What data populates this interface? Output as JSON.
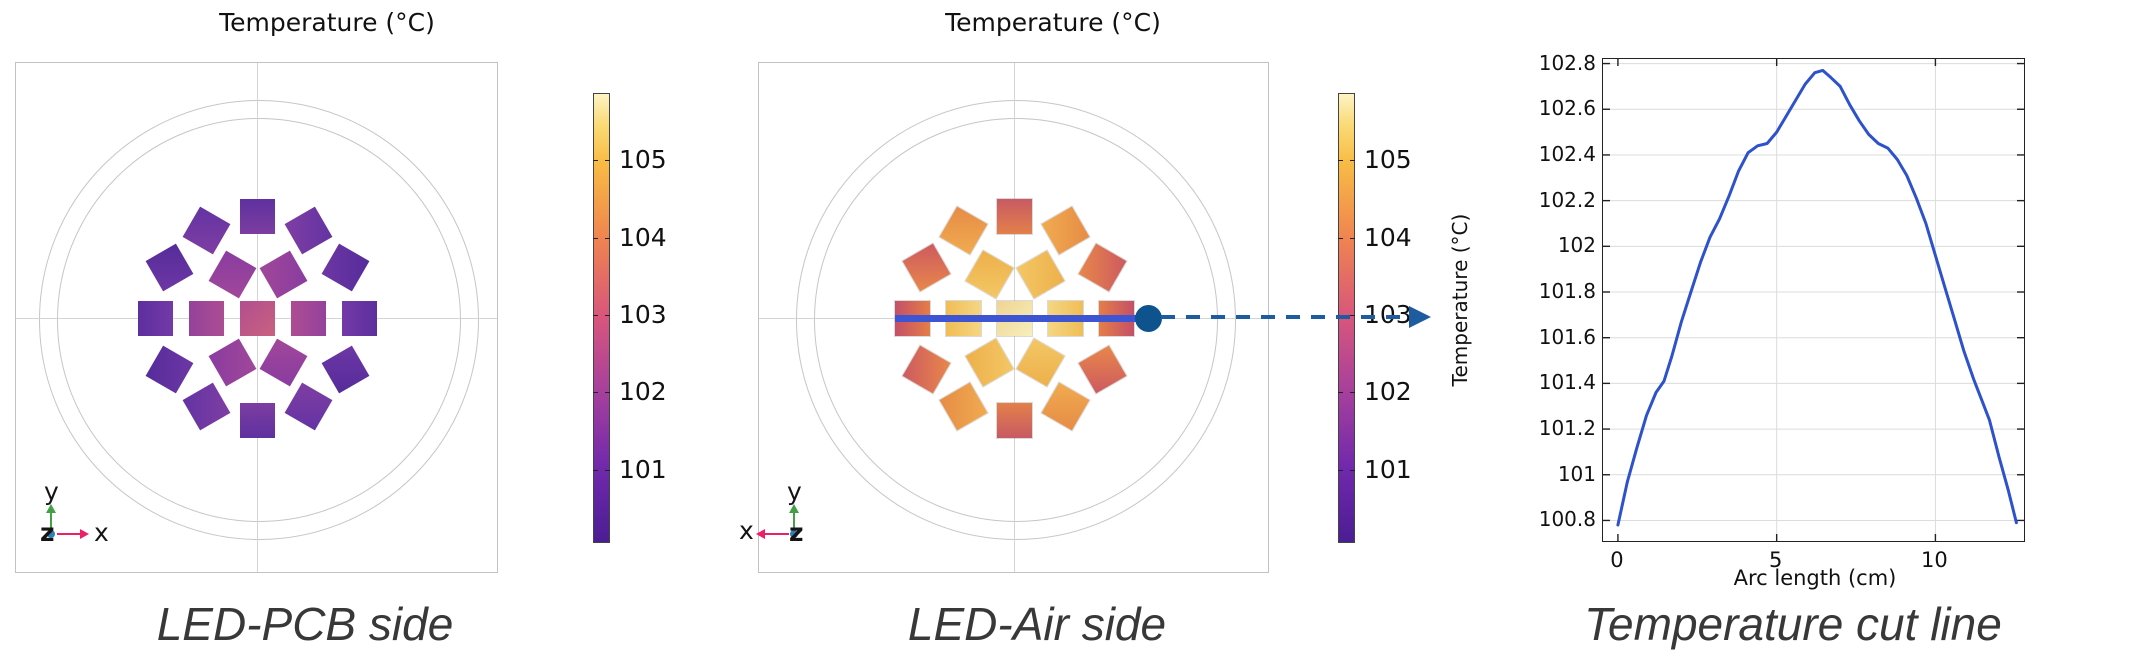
{
  "overlay": {
    "cut_line_color": "#3d55d2",
    "probe_dot_color": "#0f538e",
    "dashed_arrow_color": "#1d5c9f"
  },
  "axis_triads": {
    "pcb": {
      "up": "y",
      "origin": "z",
      "horizontal": "x",
      "horizontal_dir": "right"
    },
    "air": {
      "up": "y",
      "origin": "z",
      "horizontal": "x",
      "horizontal_dir": "left"
    }
  },
  "colorbar": {
    "tick_values": [
      105,
      104,
      103,
      102,
      101
    ],
    "range": {
      "min": 100.05,
      "max": 105.87
    },
    "gradient": [
      [
        0,
        "#4b1d94"
      ],
      [
        0.17,
        "#7229ac"
      ],
      [
        0.34,
        "#a8409c"
      ],
      [
        0.505,
        "#d9567c"
      ],
      [
        0.675,
        "#ef8350"
      ],
      [
        0.845,
        "#f8bb44"
      ],
      [
        0.93,
        "#fbda75"
      ],
      [
        1,
        "#fdf3c3"
      ]
    ]
  },
  "led_array": {
    "square_size": 35,
    "rings": [
      {
        "group": "center",
        "r": 0,
        "angles": [
          0
        ]
      },
      {
        "group": "inner_row",
        "r": 51,
        "angles": [
          0,
          180
        ]
      },
      {
        "group": "inner_diag",
        "r": 51,
        "angles": [
          60,
          120,
          240,
          300
        ]
      },
      {
        "group": "outer_row",
        "r": 102,
        "angles": [
          0,
          180
        ]
      },
      {
        "group": "outer_vert",
        "r": 102,
        "angles": [
          90,
          270
        ]
      },
      {
        "group": "outer_diag_a",
        "r": 102,
        "angles": [
          30,
          150,
          210,
          330
        ]
      },
      {
        "group": "outer_diag_b",
        "r": 102,
        "angles": [
          60,
          120,
          240,
          300
        ]
      }
    ],
    "colors": {
      "pcb": {
        "center": [
          "#b14f90",
          "#c9617f"
        ],
        "inner_row": [
          "#94429c",
          "#ad4d92"
        ],
        "inner_diag": [
          "#8a3ca1",
          "#a04799"
        ],
        "outer_row": [
          "#5c309e",
          "#7339a7"
        ],
        "outer_vert": [
          "#5e319f",
          "#7d3da1"
        ],
        "outer_diag_a": [
          "#552c9a",
          "#6d37a5"
        ],
        "outer_diag_b": [
          "#6333a3",
          "#7f3ea3"
        ]
      },
      "air": {
        "center": [
          "#efd493",
          "#f7efbc"
        ],
        "inner_row": [
          "#f0bd55",
          "#f5d684"
        ],
        "inner_diag": [
          "#edb04b",
          "#f3c765"
        ],
        "outer_row": [
          "#c45068",
          "#e57d47"
        ],
        "outer_vert": [
          "#c85a63",
          "#e3804a"
        ],
        "outer_diag_a": [
          "#cd5a60",
          "#e8874a"
        ],
        "outer_diag_b": [
          "#e68c46",
          "#f1ab50"
        ]
      }
    }
  },
  "chart_data": [
    {
      "type": "heatmap",
      "id": "led_pcb_side",
      "title": "Temperature (°C)",
      "caption": "LED-PCB side",
      "units": "°C",
      "colorbar_ticks": [
        101,
        102,
        103,
        104,
        105
      ],
      "value_range": [
        100.05,
        105.87
      ],
      "n_leds": 19
    },
    {
      "type": "heatmap",
      "id": "led_air_side",
      "title": "Temperature (°C)",
      "caption": "LED-Air side",
      "units": "°C",
      "colorbar_ticks": [
        101,
        102,
        103,
        104,
        105
      ],
      "value_range": [
        100.05,
        105.87
      ],
      "n_leds": 19,
      "cut_line_arc_length_cm": 12.6
    },
    {
      "type": "line",
      "id": "temperature_cut_line",
      "caption": "Temperature cut line",
      "xlabel": "Arc length (cm)",
      "ylabel": "Temperature (°C)",
      "xlim": [
        -0.47,
        12.79
      ],
      "ylim": [
        100.71,
        102.82
      ],
      "xticks": [
        0,
        5,
        10
      ],
      "yticks": [
        100.8,
        101,
        101.2,
        101.4,
        101.6,
        101.8,
        102,
        102.2,
        102.4,
        102.6,
        102.8
      ],
      "grid_x": [
        5,
        10
      ],
      "grid": true,
      "legend": "none",
      "line_color": "#2d52cc",
      "x": [
        0,
        0.3,
        0.6,
        0.9,
        1.2,
        1.45,
        1.7,
        2.0,
        2.3,
        2.6,
        2.9,
        3.2,
        3.5,
        3.8,
        4.1,
        4.4,
        4.7,
        5.0,
        5.3,
        5.6,
        5.9,
        6.2,
        6.45,
        6.7,
        7.0,
        7.3,
        7.6,
        7.9,
        8.2,
        8.5,
        8.8,
        9.1,
        9.4,
        9.7,
        10.0,
        10.3,
        10.6,
        10.9,
        11.2,
        11.45,
        11.7,
        12.0,
        12.3,
        12.55
      ],
      "y": [
        100.78,
        100.97,
        101.12,
        101.26,
        101.36,
        101.41,
        101.52,
        101.67,
        101.8,
        101.93,
        102.04,
        102.12,
        102.22,
        102.33,
        102.41,
        102.44,
        102.45,
        102.5,
        102.57,
        102.64,
        102.71,
        102.76,
        102.77,
        102.74,
        102.7,
        102.62,
        102.55,
        102.49,
        102.45,
        102.43,
        102.38,
        102.31,
        102.21,
        102.1,
        101.96,
        101.82,
        101.68,
        101.54,
        101.42,
        101.33,
        101.24,
        101.08,
        100.93,
        100.79
      ]
    }
  ]
}
